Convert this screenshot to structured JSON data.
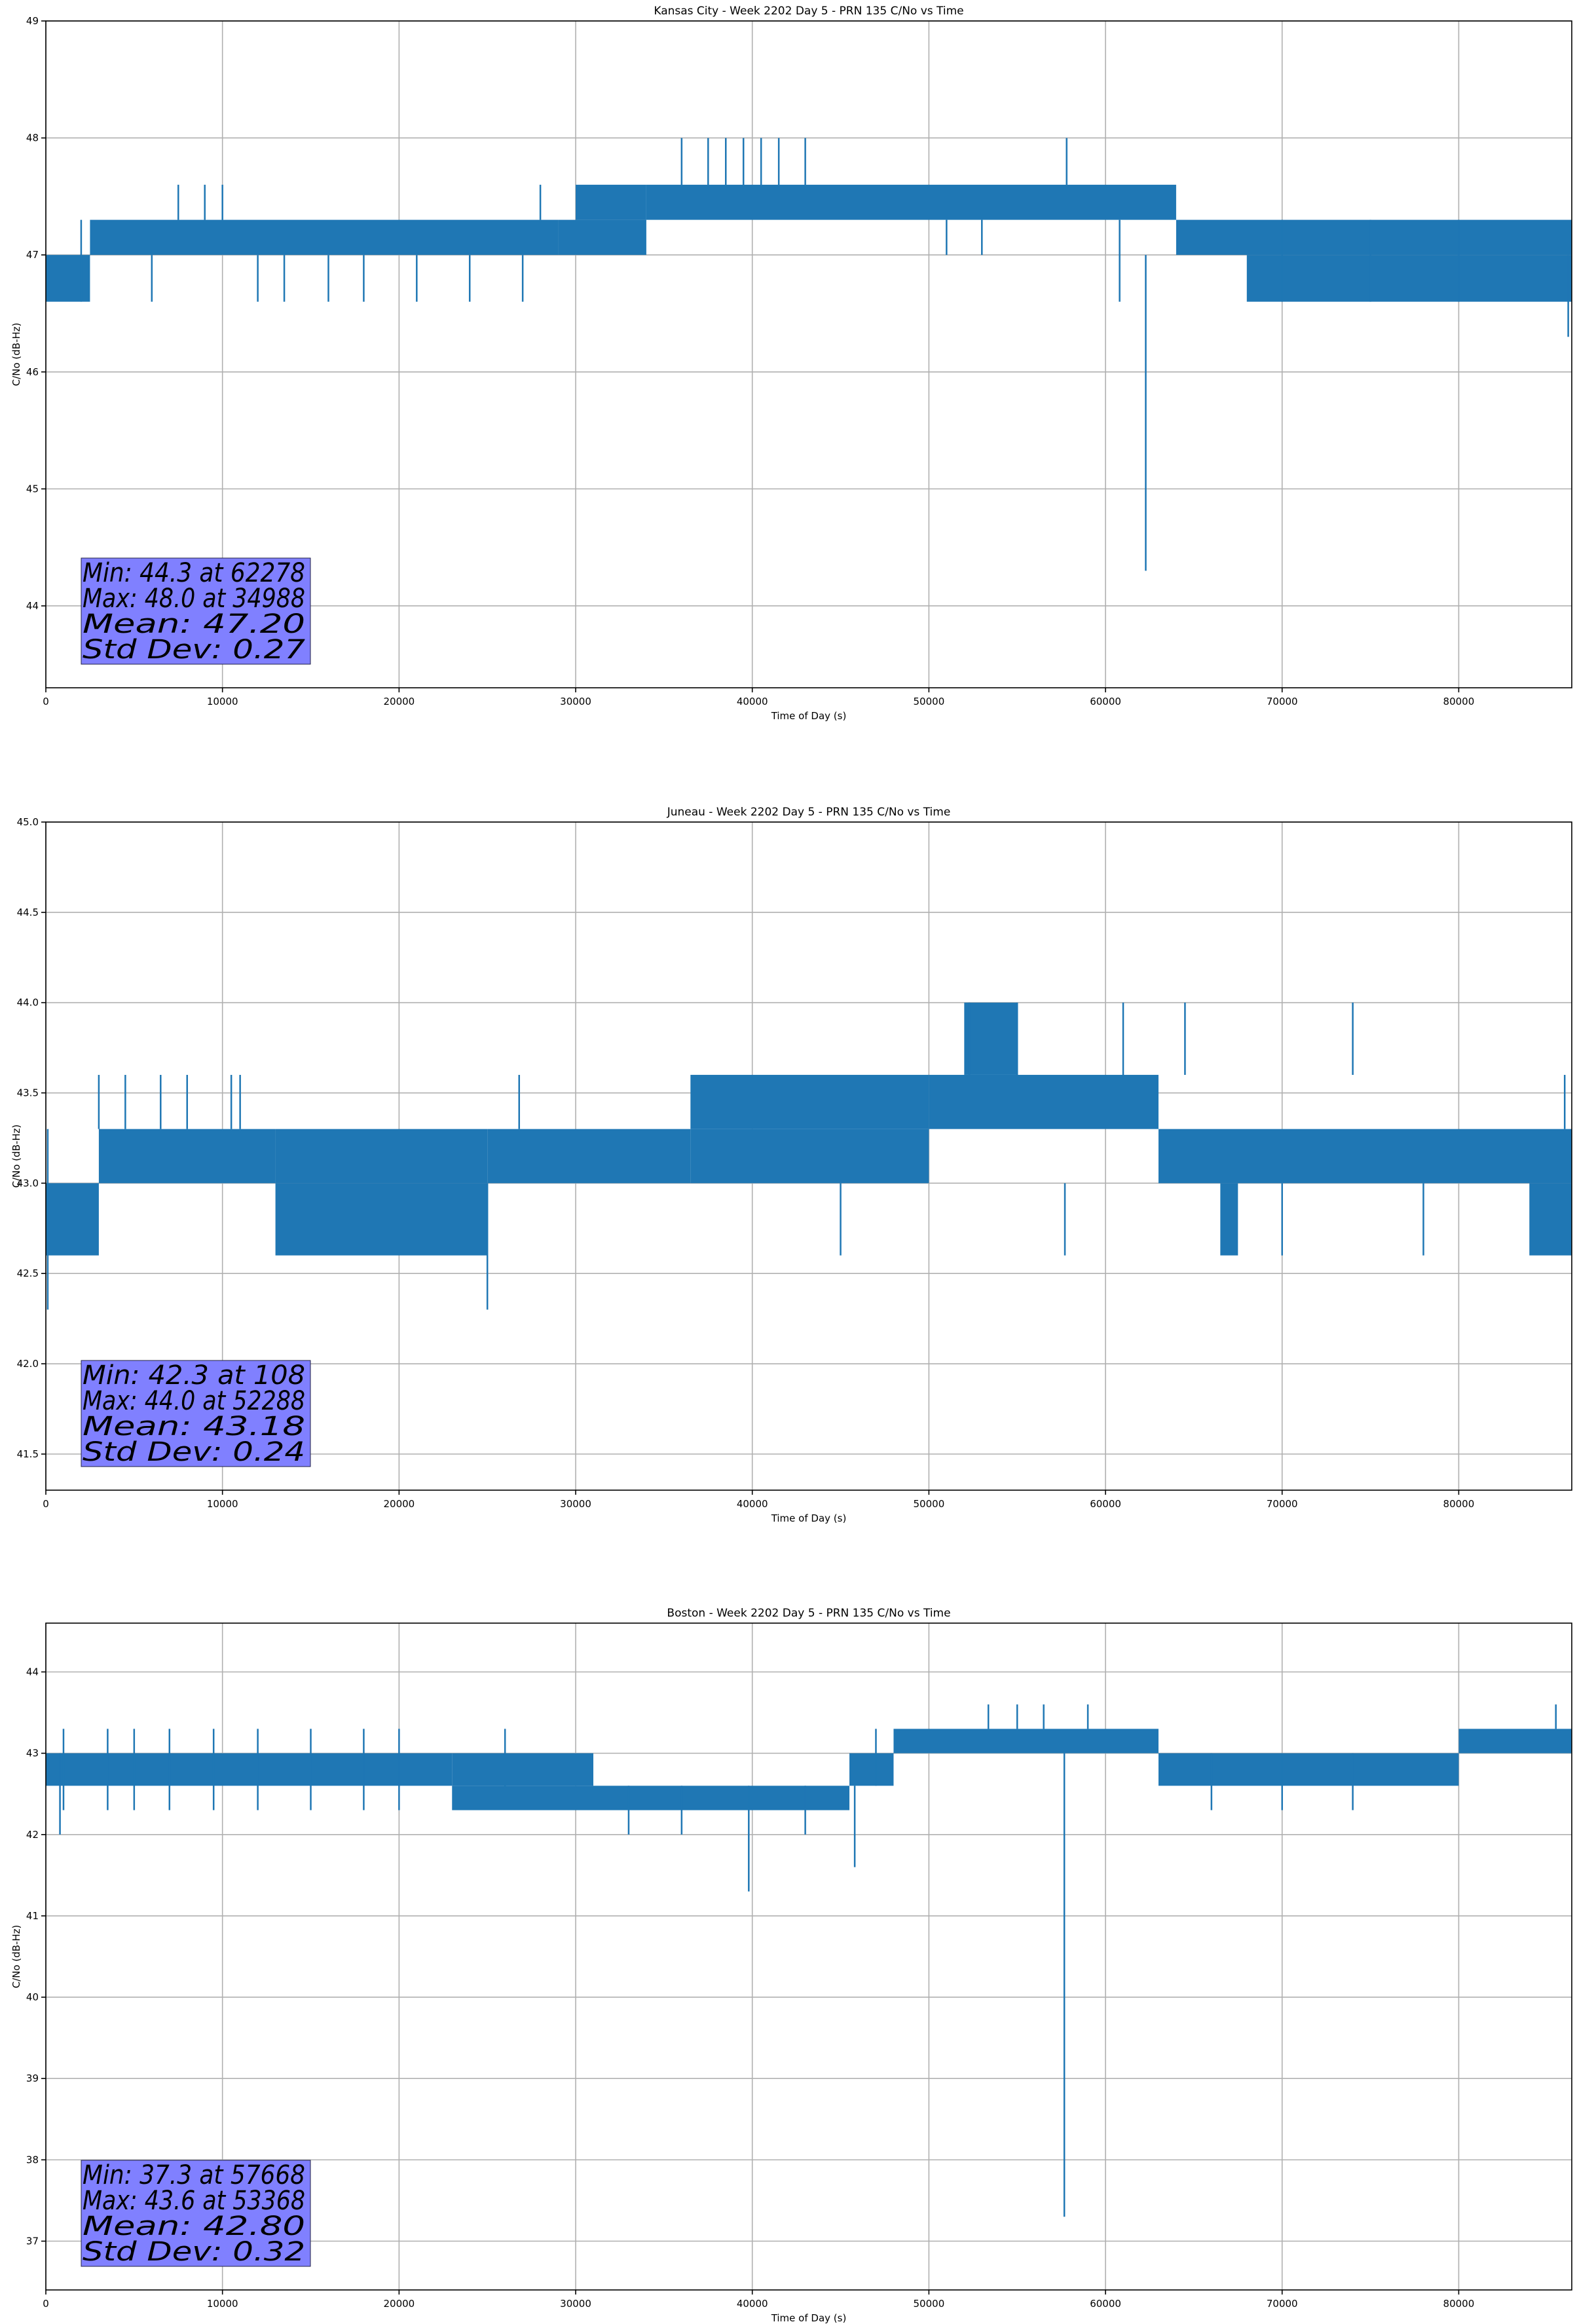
{
  "figure": {
    "background": "#ffffff",
    "line_color": "#1f77b4",
    "stats_box_color": "#8080ff"
  },
  "chart_data": [
    {
      "type": "line",
      "title": "Kansas City - Week 2202 Day 5 - PRN 135 C/No vs Time",
      "xlabel": "Time of Day (s)",
      "ylabel": "C/No (dB-Hz)",
      "xlim": [
        0,
        86400
      ],
      "ylim": [
        43.3,
        49.0
      ],
      "xticks": [
        0,
        10000,
        20000,
        30000,
        40000,
        50000,
        60000,
        70000,
        80000
      ],
      "yticks": [
        44,
        45,
        46,
        47,
        48,
        49
      ],
      "ytick_labels": [
        "44",
        "45",
        "46",
        "47",
        "48",
        "49"
      ],
      "grid": true,
      "series": [
        {
          "name": "C/No",
          "segments": [
            {
              "x0": 0,
              "x1": 2500,
              "lo": 46.6,
              "hi": 47.0
            },
            {
              "x0": 2500,
              "x1": 29000,
              "lo": 47.0,
              "hi": 47.3
            },
            {
              "x0": 29000,
              "x1": 34000,
              "lo": 47.0,
              "hi": 47.3
            },
            {
              "x0": 30000,
              "x1": 34000,
              "lo": 47.3,
              "hi": 47.6
            },
            {
              "x0": 34000,
              "x1": 64000,
              "lo": 47.3,
              "hi": 47.6
            },
            {
              "x0": 64000,
              "x1": 86400,
              "lo": 47.0,
              "hi": 47.3
            },
            {
              "x0": 68000,
              "x1": 86400,
              "lo": 46.6,
              "hi": 47.0
            }
          ],
          "spikes": [
            {
              "x": 2000,
              "lo": 46.6,
              "hi": 47.3
            },
            {
              "x": 6000,
              "lo": 46.6,
              "hi": 47.0
            },
            {
              "x": 7500,
              "lo": 47.3,
              "hi": 47.6
            },
            {
              "x": 9000,
              "lo": 47.3,
              "hi": 47.6
            },
            {
              "x": 10000,
              "lo": 47.3,
              "hi": 47.6
            },
            {
              "x": 12000,
              "lo": 46.6,
              "hi": 47.0
            },
            {
              "x": 13500,
              "lo": 46.6,
              "hi": 47.0
            },
            {
              "x": 16000,
              "lo": 46.6,
              "hi": 47.0
            },
            {
              "x": 18000,
              "lo": 46.6,
              "hi": 47.0
            },
            {
              "x": 21000,
              "lo": 46.6,
              "hi": 47.0
            },
            {
              "x": 24000,
              "lo": 46.6,
              "hi": 47.0
            },
            {
              "x": 27000,
              "lo": 46.6,
              "hi": 47.0
            },
            {
              "x": 28000,
              "lo": 47.3,
              "hi": 47.6
            },
            {
              "x": 36000,
              "lo": 47.6,
              "hi": 48.0
            },
            {
              "x": 37500,
              "lo": 47.6,
              "hi": 48.0
            },
            {
              "x": 38500,
              "lo": 47.6,
              "hi": 48.0
            },
            {
              "x": 39500,
              "lo": 47.6,
              "hi": 48.0
            },
            {
              "x": 40500,
              "lo": 47.6,
              "hi": 48.0
            },
            {
              "x": 41500,
              "lo": 47.6,
              "hi": 48.0
            },
            {
              "x": 43000,
              "lo": 47.6,
              "hi": 48.0
            },
            {
              "x": 51000,
              "lo": 47.0,
              "hi": 47.3
            },
            {
              "x": 53000,
              "lo": 47.0,
              "hi": 47.3
            },
            {
              "x": 57800,
              "lo": 47.6,
              "hi": 48.0
            },
            {
              "x": 60800,
              "lo": 46.6,
              "hi": 47.3
            },
            {
              "x": 62278,
              "lo": 44.3,
              "hi": 47.0
            },
            {
              "x": 70000,
              "lo": 46.6,
              "hi": 47.3
            },
            {
              "x": 75000,
              "lo": 46.6,
              "hi": 47.3
            },
            {
              "x": 80000,
              "lo": 46.6,
              "hi": 47.3
            },
            {
              "x": 86200,
              "lo": 46.3,
              "hi": 47.0
            }
          ]
        }
      ],
      "stats": {
        "min_label": "Min: 44.3 at 62278",
        "max_label": "Max: 48.0 at 34988",
        "mean_label": "Mean: 47.20",
        "std_label": "Std Dev: 0.27",
        "placement": "lower-left"
      }
    },
    {
      "type": "line",
      "title": "Juneau - Week 2202 Day 5 - PRN 135 C/No vs Time",
      "xlabel": "Time of Day (s)",
      "ylabel": "C/No (dB-Hz)",
      "xlim": [
        0,
        86400
      ],
      "ylim": [
        41.3,
        45.0
      ],
      "xticks": [
        0,
        10000,
        20000,
        30000,
        40000,
        50000,
        60000,
        70000,
        80000
      ],
      "yticks": [
        41.5,
        42.0,
        42.5,
        43.0,
        43.5,
        44.0,
        44.5,
        45.0
      ],
      "ytick_labels": [
        "41.5",
        "42.0",
        "42.5",
        "43.0",
        "43.5",
        "44.0",
        "44.5",
        "45.0"
      ],
      "grid": true,
      "series": [
        {
          "name": "C/No",
          "segments": [
            {
              "x0": 0,
              "x1": 3000,
              "lo": 42.6,
              "hi": 43.0
            },
            {
              "x0": 3000,
              "x1": 13000,
              "lo": 43.0,
              "hi": 43.3
            },
            {
              "x0": 13000,
              "x1": 25000,
              "lo": 42.6,
              "hi": 43.0
            },
            {
              "x0": 13000,
              "x1": 25000,
              "lo": 43.0,
              "hi": 43.3
            },
            {
              "x0": 25000,
              "x1": 36500,
              "lo": 43.0,
              "hi": 43.3
            },
            {
              "x0": 36500,
              "x1": 50000,
              "lo": 43.3,
              "hi": 43.6
            },
            {
              "x0": 36500,
              "x1": 50000,
              "lo": 43.0,
              "hi": 43.3
            },
            {
              "x0": 50000,
              "x1": 63000,
              "lo": 43.3,
              "hi": 43.6
            },
            {
              "x0": 52000,
              "x1": 55000,
              "lo": 43.6,
              "hi": 44.0
            },
            {
              "x0": 63000,
              "x1": 86400,
              "lo": 43.0,
              "hi": 43.3
            },
            {
              "x0": 66500,
              "x1": 67500,
              "lo": 42.6,
              "hi": 43.0
            },
            {
              "x0": 84000,
              "x1": 86400,
              "lo": 42.6,
              "hi": 43.0
            }
          ],
          "spikes": [
            {
              "x": 108,
              "lo": 42.3,
              "hi": 43.3
            },
            {
              "x": 3000,
              "lo": 43.3,
              "hi": 43.6
            },
            {
              "x": 4500,
              "lo": 43.3,
              "hi": 43.6
            },
            {
              "x": 6500,
              "lo": 43.3,
              "hi": 43.6
            },
            {
              "x": 8000,
              "lo": 43.3,
              "hi": 43.6
            },
            {
              "x": 10500,
              "lo": 43.3,
              "hi": 43.6
            },
            {
              "x": 11000,
              "lo": 43.3,
              "hi": 43.6
            },
            {
              "x": 25000,
              "lo": 42.3,
              "hi": 43.0
            },
            {
              "x": 26800,
              "lo": 43.3,
              "hi": 43.6
            },
            {
              "x": 45000,
              "lo": 42.6,
              "hi": 43.0
            },
            {
              "x": 52288,
              "lo": 43.6,
              "hi": 44.0
            },
            {
              "x": 55000,
              "lo": 43.6,
              "hi": 44.0
            },
            {
              "x": 57700,
              "lo": 42.6,
              "hi": 43.0
            },
            {
              "x": 61000,
              "lo": 43.6,
              "hi": 44.0
            },
            {
              "x": 64500,
              "lo": 43.6,
              "hi": 44.0
            },
            {
              "x": 70000,
              "lo": 42.6,
              "hi": 43.0
            },
            {
              "x": 74000,
              "lo": 43.6,
              "hi": 44.0
            },
            {
              "x": 78000,
              "lo": 42.6,
              "hi": 43.0
            },
            {
              "x": 86000,
              "lo": 43.3,
              "hi": 43.6
            }
          ]
        }
      ],
      "stats": {
        "min_label": "Min: 42.3 at 108",
        "max_label": "Max: 44.0 at 52288",
        "mean_label": "Mean: 43.18",
        "std_label": "Std Dev: 0.24",
        "placement": "lower-left"
      }
    },
    {
      "type": "line",
      "title": "Boston - Week 2202 Day 5 - PRN 135 C/No vs Time",
      "xlabel": "Time of Day (s)",
      "ylabel": "C/No (dB-Hz)",
      "xlim": [
        0,
        86400
      ],
      "ylim": [
        36.4,
        44.6
      ],
      "xticks": [
        0,
        10000,
        20000,
        30000,
        40000,
        50000,
        60000,
        70000,
        80000
      ],
      "yticks": [
        37,
        38,
        39,
        40,
        41,
        42,
        43,
        44
      ],
      "ytick_labels": [
        "37",
        "38",
        "39",
        "40",
        "41",
        "42",
        "43",
        "44"
      ],
      "grid": true,
      "series": [
        {
          "name": "C/No",
          "segments": [
            {
              "x0": 0,
              "x1": 23000,
              "lo": 42.6,
              "hi": 43.0
            },
            {
              "x0": 23000,
              "x1": 31000,
              "lo": 42.6,
              "hi": 43.0
            },
            {
              "x0": 23000,
              "x1": 31000,
              "lo": 42.3,
              "hi": 42.6
            },
            {
              "x0": 31000,
              "x1": 45500,
              "lo": 42.3,
              "hi": 42.6
            },
            {
              "x0": 45500,
              "x1": 48000,
              "lo": 42.6,
              "hi": 43.0
            },
            {
              "x0": 48000,
              "x1": 63000,
              "lo": 43.0,
              "hi": 43.3
            },
            {
              "x0": 63000,
              "x1": 80000,
              "lo": 42.6,
              "hi": 43.0
            },
            {
              "x0": 80000,
              "x1": 86400,
              "lo": 43.0,
              "hi": 43.3
            }
          ],
          "spikes": [
            {
              "x": 1000,
              "lo": 42.3,
              "hi": 43.3
            },
            {
              "x": 800,
              "lo": 42.0,
              "hi": 43.0
            },
            {
              "x": 3500,
              "lo": 42.3,
              "hi": 43.3
            },
            {
              "x": 5000,
              "lo": 42.3,
              "hi": 43.3
            },
            {
              "x": 7000,
              "lo": 42.3,
              "hi": 43.3
            },
            {
              "x": 9500,
              "lo": 42.3,
              "hi": 43.3
            },
            {
              "x": 12000,
              "lo": 42.3,
              "hi": 43.3
            },
            {
              "x": 15000,
              "lo": 42.3,
              "hi": 43.3
            },
            {
              "x": 18000,
              "lo": 42.3,
              "hi": 43.3
            },
            {
              "x": 20000,
              "lo": 42.3,
              "hi": 43.3
            },
            {
              "x": 26000,
              "lo": 42.3,
              "hi": 43.3
            },
            {
              "x": 33000,
              "lo": 42.0,
              "hi": 42.6
            },
            {
              "x": 36000,
              "lo": 42.0,
              "hi": 42.6
            },
            {
              "x": 39800,
              "lo": 41.3,
              "hi": 42.6
            },
            {
              "x": 43000,
              "lo": 42.0,
              "hi": 42.6
            },
            {
              "x": 45800,
              "lo": 41.6,
              "hi": 42.6
            },
            {
              "x": 47000,
              "lo": 42.6,
              "hi": 43.3
            },
            {
              "x": 53368,
              "lo": 43.3,
              "hi": 43.6
            },
            {
              "x": 55000,
              "lo": 43.3,
              "hi": 43.6
            },
            {
              "x": 56500,
              "lo": 43.3,
              "hi": 43.6
            },
            {
              "x": 57668,
              "lo": 37.3,
              "hi": 43.0
            },
            {
              "x": 59000,
              "lo": 43.3,
              "hi": 43.6
            },
            {
              "x": 66000,
              "lo": 42.3,
              "hi": 43.0
            },
            {
              "x": 70000,
              "lo": 42.3,
              "hi": 43.0
            },
            {
              "x": 74000,
              "lo": 42.3,
              "hi": 43.0
            },
            {
              "x": 85500,
              "lo": 43.3,
              "hi": 43.6
            }
          ]
        }
      ],
      "stats": {
        "min_label": "Min: 37.3 at 57668",
        "max_label": "Max: 43.6 at 53368",
        "mean_label": "Mean: 42.80",
        "std_label": "Std Dev: 0.32",
        "placement": "lower-left"
      }
    }
  ]
}
